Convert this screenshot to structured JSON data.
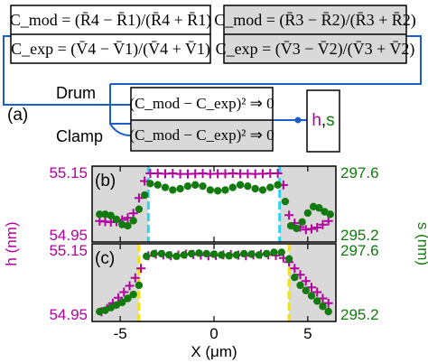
{
  "colors": {
    "magenta": "#b3009f",
    "green": "#127a0e",
    "cyan": "#2fd0f0",
    "yellow": "#f5e400",
    "blue": "#1a5fc8",
    "grey_bg": "#d9d9d9"
  },
  "diagram": {
    "panel_label": "(a)",
    "eq_c_mod_left": "C_mod = (R̄4 − R̄1)/(R̄4 + R̄1)",
    "eq_c_exp_left": "C_exp = (V̄4 − V̄1)/(V̄4 + V̄1)",
    "eq_c_mod_right": "C_mod = (R̄3 − R̄2)/(R̄3 + R̄2)",
    "eq_c_exp_right": "C_exp = (V̄3 − V̄2)/(V̄3 + V̄2)",
    "drum_label": "Drum",
    "clamp_label": "Clamp",
    "eq_minimize_drum": "(C_mod − C_exp)² ⇒ 0",
    "eq_minimize_clamp": "(C_mod − C_exp)² ⇒ 0",
    "output_h": "h",
    "output_comma": ",",
    "output_s": "s"
  },
  "chart_data": [
    {
      "type": "scatter",
      "panel_label": "(b)",
      "xlim": [
        -6.5,
        6.5
      ],
      "ylim_left": [
        54.95,
        55.15
      ],
      "ylim_right": [
        295.2,
        297.6
      ],
      "yticks_left": [
        "55.15",
        "54.95"
      ],
      "yticks_right": [
        "297.6",
        "295.2"
      ],
      "edges": [
        -3.5,
        3.5
      ],
      "series": [
        {
          "axis": "left",
          "marker": "plus",
          "x": [
            -6.1,
            -5.8,
            -5.5,
            -5.2,
            -4.9,
            -4.6,
            -4.3,
            -4.0,
            -3.7,
            -3.4,
            -3.0,
            -2.6,
            -2.2,
            -1.8,
            -1.4,
            -1.0,
            -0.6,
            -0.2,
            0.2,
            0.6,
            1.0,
            1.4,
            1.8,
            2.2,
            2.6,
            3.0,
            3.4,
            3.7,
            4.0,
            4.3,
            4.6,
            4.9,
            5.2,
            5.5,
            5.8,
            6.1
          ],
          "y": [
            54.995,
            54.993,
            54.991,
            54.993,
            54.999,
            55.005,
            55.02,
            55.07,
            55.125,
            55.15,
            55.15,
            55.149,
            55.15,
            55.148,
            55.148,
            55.149,
            55.15,
            55.148,
            55.149,
            55.149,
            55.15,
            55.149,
            55.149,
            55.148,
            55.149,
            55.15,
            55.15,
            55.112,
            55.014,
            54.988,
            54.975,
            54.967,
            54.969,
            54.974,
            54.983,
            54.995
          ]
        },
        {
          "axis": "right",
          "marker": "circle",
          "x": [
            -6.1,
            -5.8,
            -5.5,
            -5.2,
            -4.9,
            -4.6,
            -4.3,
            -4.0,
            -3.7,
            -3.4,
            -3.0,
            -2.6,
            -2.2,
            -1.8,
            -1.4,
            -1.0,
            -0.6,
            -0.2,
            0.2,
            0.6,
            1.0,
            1.4,
            1.8,
            2.2,
            2.6,
            3.0,
            3.4,
            3.8,
            4.1,
            4.4,
            4.7,
            5.0,
            5.3,
            5.6,
            5.9,
            6.2
          ],
          "y": [
            296.0,
            296.0,
            295.95,
            295.8,
            295.6,
            295.55,
            295.75,
            296.2,
            296.75,
            297.2,
            297.15,
            297.05,
            296.95,
            297.0,
            297.1,
            297.15,
            297.1,
            296.95,
            296.92,
            296.95,
            297.05,
            297.15,
            297.1,
            297.0,
            296.95,
            297.05,
            297.15,
            296.5,
            295.55,
            295.45,
            295.7,
            296.05,
            296.3,
            296.25,
            296.1,
            296.0
          ]
        }
      ]
    },
    {
      "type": "scatter",
      "panel_label": "(c)",
      "xlim": [
        -6.5,
        6.5
      ],
      "ylim_left": [
        54.95,
        55.15
      ],
      "ylim_right": [
        295.2,
        297.6
      ],
      "yticks_left": [
        "55.15",
        "54.95"
      ],
      "yticks_right": [
        "297.6",
        "295.2"
      ],
      "xticks": [
        "-5",
        "0",
        "5"
      ],
      "xlabel": "X (μm)",
      "edges": [
        -4.0,
        4.0
      ],
      "series": [
        {
          "axis": "left",
          "marker": "plus",
          "x": [
            -6.0,
            -5.7,
            -5.4,
            -5.1,
            -4.8,
            -4.5,
            -4.2,
            -3.9,
            -3.5,
            -3.1,
            -2.7,
            -2.3,
            -1.9,
            -1.5,
            -1.1,
            -0.7,
            -0.3,
            0.1,
            0.5,
            0.9,
            1.3,
            1.7,
            2.1,
            2.5,
            2.9,
            3.3,
            3.7,
            4.0,
            4.3,
            4.6,
            4.9,
            5.2,
            5.5,
            5.8,
            6.1
          ],
          "y": [
            54.958,
            54.968,
            54.985,
            55.002,
            55.02,
            55.04,
            55.065,
            55.095,
            55.135,
            55.14,
            55.138,
            55.135,
            55.137,
            55.14,
            55.139,
            55.137,
            55.135,
            55.136,
            55.138,
            55.139,
            55.137,
            55.135,
            55.138,
            55.14,
            55.138,
            55.136,
            55.128,
            55.115,
            55.095,
            55.075,
            55.055,
            55.035,
            55.02,
            55.0,
            54.985
          ]
        },
        {
          "axis": "right",
          "marker": "circle",
          "x": [
            -6.1,
            -5.8,
            -5.5,
            -5.2,
            -4.9,
            -4.6,
            -4.3,
            -4.0,
            -3.6,
            -3.2,
            -2.8,
            -2.4,
            -2.0,
            -1.6,
            -1.2,
            -0.8,
            -0.4,
            0.0,
            0.4,
            0.8,
            1.2,
            1.6,
            2.0,
            2.4,
            2.8,
            3.2,
            3.6,
            4.0,
            4.3,
            4.6,
            4.9,
            5.2,
            5.5,
            5.8,
            6.1
          ],
          "y": [
            295.3,
            295.35,
            295.45,
            295.55,
            295.65,
            295.8,
            295.95,
            296.3,
            297.4,
            297.5,
            297.5,
            297.45,
            297.4,
            297.45,
            297.5,
            297.52,
            297.5,
            297.48,
            297.45,
            297.42,
            297.45,
            297.5,
            297.48,
            297.45,
            297.5,
            297.55,
            297.55,
            297.3,
            296.6,
            296.3,
            296.1,
            295.9,
            295.7,
            295.5,
            295.3
          ]
        }
      ]
    }
  ],
  "axes": {
    "h_label": "h (nm)",
    "s_label": "s (nm)"
  }
}
